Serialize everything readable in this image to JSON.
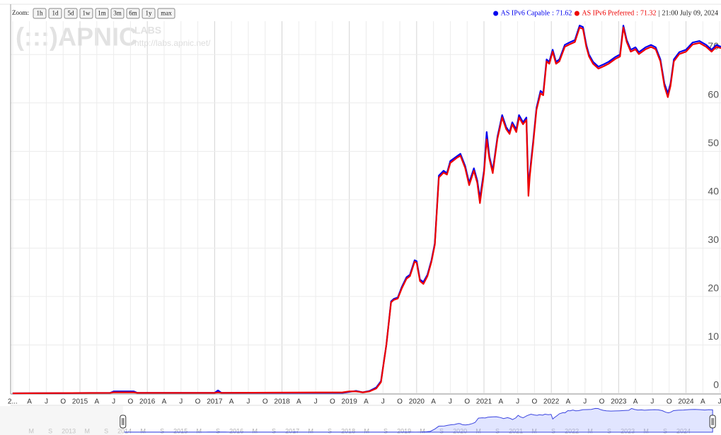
{
  "chart_data": {
    "type": "line",
    "zoom": {
      "label": "Zoom:",
      "buttons": [
        "1h",
        "1d",
        "5d",
        "1w",
        "1m",
        "3m",
        "6m",
        "1y",
        "max"
      ]
    },
    "watermark": {
      "logo": "(:::)APNIC",
      "labs": "LABS",
      "url": "http://labs.apnic.net/"
    },
    "legend": {
      "values": [
        71.62,
        71.32
      ],
      "separator": ":",
      "time_separator": "|",
      "time": "21:00 July 09, 2024"
    },
    "xlim": [
      2013.97,
      2024.52
    ],
    "ylim": [
      -0.15,
      76.9
    ],
    "yticks": [
      0,
      10,
      20,
      30,
      40,
      50,
      60,
      70
    ],
    "xticks": [
      {
        "value": 2014,
        "label": "2..."
      },
      {
        "value": 2014.25,
        "label": "A"
      },
      {
        "value": 2014.5,
        "label": "J"
      },
      {
        "value": 2014.75,
        "label": "O"
      },
      2015,
      {
        "value": 2015.25,
        "label": "A"
      },
      {
        "value": 2015.5,
        "label": "J"
      },
      {
        "value": 2015.75,
        "label": "O"
      },
      2016,
      {
        "value": 2016.25,
        "label": "A"
      },
      {
        "value": 2016.5,
        "label": "J"
      },
      {
        "value": 2016.75,
        "label": "O"
      },
      2017,
      {
        "value": 2017.25,
        "label": "A"
      },
      {
        "value": 2017.5,
        "label": "J"
      },
      {
        "value": 2017.75,
        "label": "O"
      },
      2018,
      {
        "value": 2018.25,
        "label": "A"
      },
      {
        "value": 2018.5,
        "label": "J"
      },
      {
        "value": 2018.75,
        "label": "O"
      },
      2019,
      {
        "value": 2019.25,
        "label": "A"
      },
      {
        "value": 2019.5,
        "label": "J"
      },
      {
        "value": 2019.75,
        "label": "O"
      },
      2020,
      {
        "value": 2020.25,
        "label": "A"
      },
      {
        "value": 2020.5,
        "label": "J"
      },
      {
        "value": 2020.75,
        "label": "O"
      },
      2021,
      {
        "value": 2021.25,
        "label": "A"
      },
      {
        "value": 2021.5,
        "label": "J"
      },
      {
        "value": 2021.75,
        "label": "O"
      },
      2022,
      {
        "value": 2022.25,
        "label": "A"
      },
      {
        "value": 2022.5,
        "label": "J"
      },
      {
        "value": 2022.75,
        "label": "O"
      },
      2023,
      {
        "value": 2023.25,
        "label": "A"
      },
      {
        "value": 2023.5,
        "label": "J"
      },
      {
        "value": 2023.75,
        "label": "O"
      },
      2024,
      {
        "value": 2024.25,
        "label": "A"
      },
      {
        "value": 2024.5,
        "label": "J"
      }
    ],
    "grid": true,
    "x": [
      2014.0,
      2015.45,
      2015.5,
      2015.8,
      2015.85,
      2017.0,
      2017.05,
      2017.1,
      2018.9,
      2019.0,
      2019.1,
      2019.2,
      2019.3,
      2019.4,
      2019.47,
      2019.55,
      2019.62,
      2019.66,
      2019.72,
      2019.78,
      2019.85,
      2019.9,
      2019.97,
      2020.0,
      2020.05,
      2020.1,
      2020.16,
      2020.22,
      2020.27,
      2020.33,
      2020.4,
      2020.45,
      2020.5,
      2020.6,
      2020.65,
      2020.72,
      2020.78,
      2020.85,
      2020.9,
      2020.94,
      2021.0,
      2021.04,
      2021.08,
      2021.13,
      2021.2,
      2021.27,
      2021.33,
      2021.38,
      2021.42,
      2021.48,
      2021.52,
      2021.58,
      2021.63,
      2021.66,
      2021.68,
      2021.73,
      2021.78,
      2021.84,
      2021.88,
      2021.93,
      2021.97,
      2022.02,
      2022.07,
      2022.12,
      2022.2,
      2022.27,
      2022.35,
      2022.42,
      2022.47,
      2022.52,
      2022.56,
      2022.62,
      2022.7,
      2022.78,
      2022.85,
      2022.95,
      2023.02,
      2023.07,
      2023.12,
      2023.18,
      2023.25,
      2023.3,
      2023.4,
      2023.48,
      2023.55,
      2023.62,
      2023.68,
      2023.73,
      2023.77,
      2023.82,
      2023.9,
      2024.0,
      2024.1,
      2024.2,
      2024.3,
      2024.38,
      2024.45,
      2024.52
    ],
    "series": [
      {
        "name": "AS IPv6 Capable",
        "color": "#0000ee",
        "values": [
          0,
          0.1,
          0.4,
          0.4,
          0.1,
          0.1,
          0.6,
          0.1,
          0.1,
          0.3,
          0.5,
          0.2,
          0.5,
          1.2,
          2.5,
          10,
          19,
          19.5,
          19.8,
          22,
          24,
          24.5,
          27.5,
          27.3,
          23.5,
          23,
          24.5,
          27.5,
          31,
          45,
          46,
          45.5,
          48,
          49,
          49.5,
          47,
          43.5,
          46.5,
          44,
          40.3,
          46,
          54,
          49,
          46,
          53,
          57.5,
          55,
          54,
          56,
          54.5,
          57.5,
          56,
          57,
          42,
          45.5,
          52,
          59,
          62.5,
          62,
          69,
          68.5,
          71,
          68.5,
          69,
          72,
          72.5,
          73,
          76,
          75.7,
          72,
          70,
          68.5,
          67.5,
          68,
          68.5,
          69.5,
          70,
          76,
          73,
          71,
          71.5,
          70.5,
          71.5,
          72,
          71.5,
          69,
          64,
          62,
          64,
          69,
          70.5,
          71,
          72.5,
          72.8,
          72,
          71,
          72,
          71.62
        ]
      },
      {
        "name": "AS IPv6 Preferred",
        "color": "#ee0000",
        "values": [
          0,
          0.1,
          0.2,
          0.2,
          0.1,
          0.1,
          0.2,
          0.1,
          0.2,
          0.4,
          0.4,
          0.2,
          0.4,
          1.0,
          2.3,
          10,
          18.8,
          19.3,
          19.6,
          21.7,
          23.7,
          24.2,
          27.2,
          27.0,
          23.2,
          22.6,
          24.2,
          27.2,
          30.7,
          44.6,
          45.6,
          45.2,
          47.6,
          48.7,
          49.1,
          46.6,
          43,
          46,
          43.5,
          39.3,
          45.5,
          52.5,
          48.5,
          45.5,
          52.6,
          57,
          54.6,
          53.6,
          55.6,
          54,
          57,
          55.6,
          56.5,
          40.8,
          44.8,
          51.5,
          58.6,
          62,
          61.6,
          68.6,
          68.1,
          70.6,
          68.1,
          68.6,
          71.6,
          72.1,
          72.6,
          75.6,
          75.3,
          71.6,
          69.6,
          68.1,
          67.1,
          67.6,
          68.1,
          69.1,
          69.6,
          75.6,
          72.6,
          70.6,
          71.1,
          70.1,
          71.1,
          71.6,
          71.1,
          68.6,
          63.5,
          61.2,
          63.5,
          68.6,
          70.1,
          70.6,
          72.1,
          72.4,
          71.6,
          70.6,
          71.6,
          71.32
        ]
      }
    ],
    "range_selector": {
      "xlim": [
        2011.77,
        2024.67
      ],
      "xticks": [
        {
          "value": 2012.33,
          "label": "M"
        },
        {
          "value": 2012.67,
          "label": "S"
        },
        2013,
        {
          "value": 2013.33,
          "label": "M"
        },
        {
          "value": 2013.67,
          "label": "S"
        },
        2014,
        {
          "value": 2014.33,
          "label": "M"
        },
        {
          "value": 2014.67,
          "label": "S"
        },
        2015,
        {
          "value": 2015.33,
          "label": "M"
        },
        {
          "value": 2015.67,
          "label": "S"
        },
        2016,
        {
          "value": 2016.33,
          "label": "M"
        },
        {
          "value": 2016.67,
          "label": "S"
        },
        2017,
        {
          "value": 2017.33,
          "label": "M"
        },
        {
          "value": 2017.67,
          "label": "S"
        },
        2018,
        {
          "value": 2018.33,
          "label": "M"
        },
        {
          "value": 2018.67,
          "label": "S"
        },
        2019,
        {
          "value": 2019.33,
          "label": "M"
        },
        {
          "value": 2019.67,
          "label": "S"
        },
        2020,
        {
          "value": 2020.33,
          "label": "M"
        },
        {
          "value": 2020.67,
          "label": "S"
        },
        2021,
        {
          "value": 2021.33,
          "label": "M"
        },
        {
          "value": 2021.67,
          "label": "S"
        },
        2022,
        {
          "value": 2022.33,
          "label": "M"
        },
        {
          "value": 2022.67,
          "label": "S"
        },
        2023,
        {
          "value": 2023.33,
          "label": "M"
        },
        {
          "value": 2023.67,
          "label": "S"
        },
        2024
      ]
    }
  }
}
